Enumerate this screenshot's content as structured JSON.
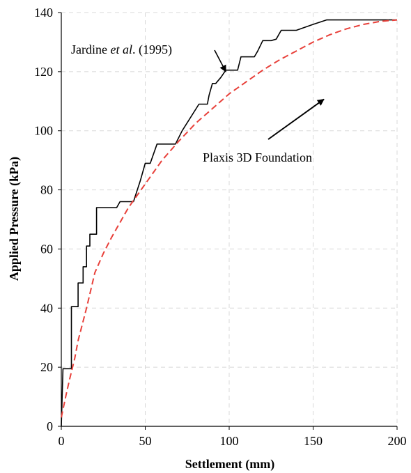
{
  "chart_data": {
    "type": "line",
    "title": "",
    "xlabel": "Settlement (mm)",
    "ylabel": "Applied Pressure (kPa)",
    "xlim": [
      0,
      200
    ],
    "ylim": [
      0,
      140
    ],
    "xticks": [
      "0",
      "50",
      "100",
      "150",
      "200"
    ],
    "yticks": [
      "0",
      "20",
      "40",
      "60",
      "80",
      "100",
      "120",
      "140"
    ],
    "grid": true,
    "legend": "none",
    "series": [
      {
        "color": "#000000",
        "style": "solid",
        "x": [
          0,
          1,
          6,
          6,
          10,
          10,
          13,
          13,
          15,
          15,
          17,
          17,
          21,
          21,
          23,
          33,
          35,
          43,
          47,
          50,
          53,
          57,
          68,
          72,
          82,
          87,
          88,
          90,
          92,
          95,
          98,
          105,
          107,
          110,
          115,
          117,
          120,
          125,
          128,
          131,
          134,
          140,
          150,
          158,
          200
        ],
        "y": [
          0,
          19.5,
          19.5,
          40.5,
          40.5,
          48.5,
          48.5,
          54,
          54,
          61,
          61,
          65,
          65,
          74,
          74,
          74,
          76,
          76,
          83,
          89,
          89,
          95.5,
          95.5,
          100,
          109,
          109,
          112,
          116,
          116,
          118,
          120.5,
          120.5,
          125,
          125,
          125,
          127,
          130.5,
          130.5,
          131,
          134,
          134,
          134,
          136,
          137.5,
          137.5
        ]
      },
      {
        "color": "#e8403a",
        "style": "dashed",
        "x": [
          0,
          3,
          5,
          8,
          10,
          15,
          20,
          25,
          30,
          40,
          50,
          60,
          70,
          80,
          90,
          100,
          110,
          120,
          130,
          140,
          150,
          160,
          170,
          180,
          190,
          200
        ],
        "y": [
          3,
          11,
          16,
          23,
          29,
          40,
          52,
          58.5,
          64,
          74,
          82,
          90,
          96.5,
          102.5,
          107.5,
          112.5,
          116.5,
          120.5,
          124,
          127,
          130,
          132.5,
          134.5,
          136,
          137,
          137.5
        ]
      }
    ],
    "annotations": [
      {
        "text_prefix": "Jardine ",
        "text_italic": "et al",
        "text_suffix": ". (1995)",
        "arrow_to": [
          98,
          120
        ]
      },
      {
        "text": "Plaxis 3D Foundation",
        "arrow_to": [
          90,
          113
        ]
      }
    ]
  }
}
